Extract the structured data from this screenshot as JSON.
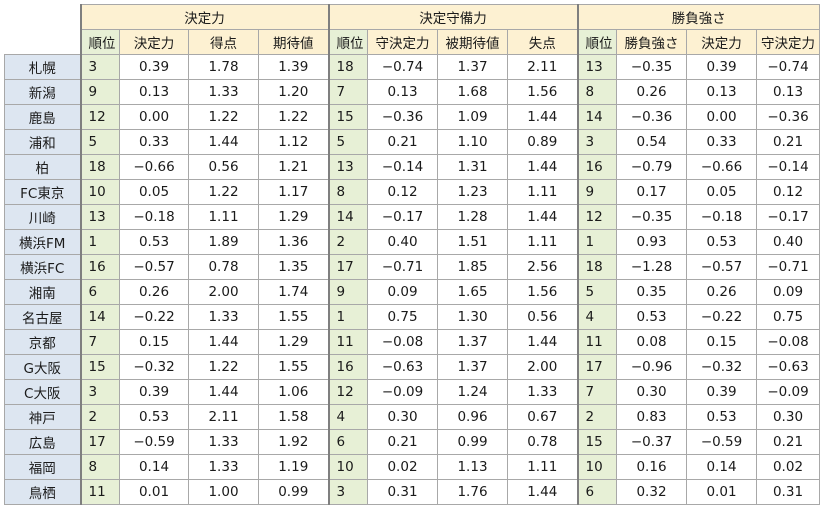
{
  "groups": [
    "決定力",
    "決定守備力",
    "勝負強さ"
  ],
  "subheaders": [
    [
      "順位",
      "決定力",
      "得点",
      "期待値"
    ],
    [
      "順位",
      "守決定力",
      "被期待値",
      "失点"
    ],
    [
      "順位",
      "勝負強さ",
      "決定力",
      "守決定力"
    ]
  ],
  "rows": [
    {
      "team": "札幌",
      "kettei": [
        "3",
        "0.39",
        "1.78",
        "1.39"
      ],
      "shubi": [
        "18",
        "−0.74",
        "1.37",
        "2.11"
      ],
      "shobu": [
        "13",
        "−0.35",
        "0.39",
        "−0.74"
      ]
    },
    {
      "team": "新潟",
      "kettei": [
        "9",
        "0.13",
        "1.33",
        "1.20"
      ],
      "shubi": [
        "7",
        "0.13",
        "1.68",
        "1.56"
      ],
      "shobu": [
        "8",
        "0.26",
        "0.13",
        "0.13"
      ]
    },
    {
      "team": "鹿島",
      "kettei": [
        "12",
        "0.00",
        "1.22",
        "1.22"
      ],
      "shubi": [
        "15",
        "−0.36",
        "1.09",
        "1.44"
      ],
      "shobu": [
        "14",
        "−0.36",
        "0.00",
        "−0.36"
      ]
    },
    {
      "team": "浦和",
      "kettei": [
        "5",
        "0.33",
        "1.44",
        "1.12"
      ],
      "shubi": [
        "5",
        "0.21",
        "1.10",
        "0.89"
      ],
      "shobu": [
        "3",
        "0.54",
        "0.33",
        "0.21"
      ]
    },
    {
      "team": "柏",
      "kettei": [
        "18",
        "−0.66",
        "0.56",
        "1.21"
      ],
      "shubi": [
        "13",
        "−0.14",
        "1.31",
        "1.44"
      ],
      "shobu": [
        "16",
        "−0.79",
        "−0.66",
        "−0.14"
      ]
    },
    {
      "team": "FC東京",
      "kettei": [
        "10",
        "0.05",
        "1.22",
        "1.17"
      ],
      "shubi": [
        "8",
        "0.12",
        "1.23",
        "1.11"
      ],
      "shobu": [
        "9",
        "0.17",
        "0.05",
        "0.12"
      ]
    },
    {
      "team": "川崎",
      "kettei": [
        "13",
        "−0.18",
        "1.11",
        "1.29"
      ],
      "shubi": [
        "14",
        "−0.17",
        "1.28",
        "1.44"
      ],
      "shobu": [
        "12",
        "−0.35",
        "−0.18",
        "−0.17"
      ]
    },
    {
      "team": "横浜FM",
      "kettei": [
        "1",
        "0.53",
        "1.89",
        "1.36"
      ],
      "shubi": [
        "2",
        "0.40",
        "1.51",
        "1.11"
      ],
      "shobu": [
        "1",
        "0.93",
        "0.53",
        "0.40"
      ]
    },
    {
      "team": "横浜FC",
      "kettei": [
        "16",
        "−0.57",
        "0.78",
        "1.35"
      ],
      "shubi": [
        "17",
        "−0.71",
        "1.85",
        "2.56"
      ],
      "shobu": [
        "18",
        "−1.28",
        "−0.57",
        "−0.71"
      ]
    },
    {
      "team": "湘南",
      "kettei": [
        "6",
        "0.26",
        "2.00",
        "1.74"
      ],
      "shubi": [
        "9",
        "0.09",
        "1.65",
        "1.56"
      ],
      "shobu": [
        "5",
        "0.35",
        "0.26",
        "0.09"
      ]
    },
    {
      "team": "名古屋",
      "kettei": [
        "14",
        "−0.22",
        "1.33",
        "1.55"
      ],
      "shubi": [
        "1",
        "0.75",
        "1.30",
        "0.56"
      ],
      "shobu": [
        "4",
        "0.53",
        "−0.22",
        "0.75"
      ]
    },
    {
      "team": "京都",
      "kettei": [
        "7",
        "0.15",
        "1.44",
        "1.29"
      ],
      "shubi": [
        "11",
        "−0.08",
        "1.37",
        "1.44"
      ],
      "shobu": [
        "11",
        "0.08",
        "0.15",
        "−0.08"
      ]
    },
    {
      "team": "G大阪",
      "kettei": [
        "15",
        "−0.32",
        "1.22",
        "1.55"
      ],
      "shubi": [
        "16",
        "−0.63",
        "1.37",
        "2.00"
      ],
      "shobu": [
        "17",
        "−0.96",
        "−0.32",
        "−0.63"
      ]
    },
    {
      "team": "C大阪",
      "kettei": [
        "3",
        "0.39",
        "1.44",
        "1.06"
      ],
      "shubi": [
        "12",
        "−0.09",
        "1.24",
        "1.33"
      ],
      "shobu": [
        "7",
        "0.30",
        "0.39",
        "−0.09"
      ]
    },
    {
      "team": "神戸",
      "kettei": [
        "2",
        "0.53",
        "2.11",
        "1.58"
      ],
      "shubi": [
        "4",
        "0.30",
        "0.96",
        "0.67"
      ],
      "shobu": [
        "2",
        "0.83",
        "0.53",
        "0.30"
      ]
    },
    {
      "team": "広島",
      "kettei": [
        "17",
        "−0.59",
        "1.33",
        "1.92"
      ],
      "shubi": [
        "6",
        "0.21",
        "0.99",
        "0.78"
      ],
      "shobu": [
        "15",
        "−0.37",
        "−0.59",
        "0.21"
      ]
    },
    {
      "team": "福岡",
      "kettei": [
        "8",
        "0.14",
        "1.33",
        "1.19"
      ],
      "shubi": [
        "10",
        "0.02",
        "1.13",
        "1.11"
      ],
      "shobu": [
        "10",
        "0.16",
        "0.14",
        "0.02"
      ]
    },
    {
      "team": "鳥栖",
      "kettei": [
        "11",
        "0.01",
        "1.00",
        "0.99"
      ],
      "shubi": [
        "3",
        "0.31",
        "1.76",
        "1.44"
      ],
      "shobu": [
        "6",
        "0.32",
        "0.01",
        "0.31"
      ]
    }
  ]
}
